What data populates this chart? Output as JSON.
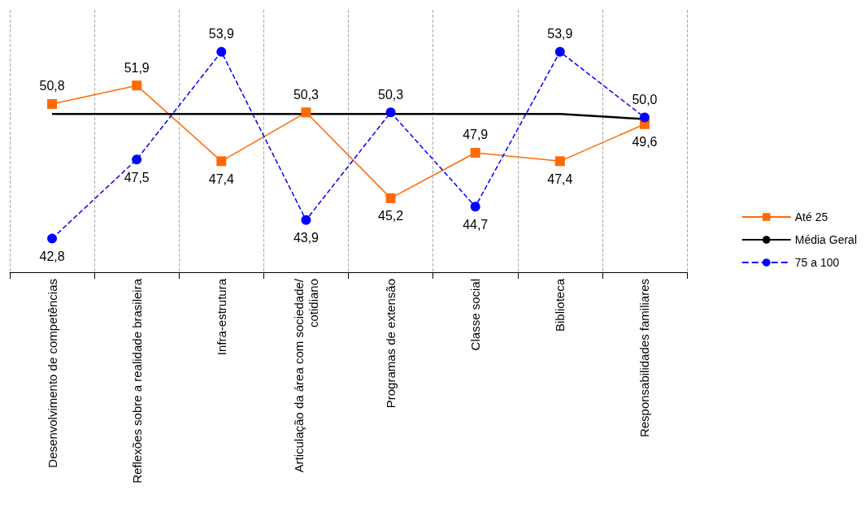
{
  "chart_data": {
    "type": "line",
    "categories": [
      "Desenvolvimento de competências",
      "Reflexões sobre a realidade brasileira",
      "Infra-estrutura",
      "Articulação da área com sociedade/cotidiano",
      "Programas de extensão",
      "Classe social",
      "Biblioteca",
      "Responsabilidades familiares"
    ],
    "series": [
      {
        "name": "Até 25",
        "color": "#ff6a00",
        "marker": "square",
        "line_style": "solid",
        "values": [
          50.8,
          51.9,
          47.4,
          50.3,
          45.2,
          47.9,
          47.4,
          49.6
        ],
        "value_labels": [
          "50,8",
          "51,9",
          "47,4",
          "50,3",
          "45,2",
          "47,9",
          "47,4",
          "49,6"
        ]
      },
      {
        "name": "Média Geral",
        "color": "#000000",
        "marker": "none",
        "line_style": "solid",
        "values": [
          50.2,
          50.2,
          50.2,
          50.2,
          50.2,
          50.2,
          50.2,
          49.9
        ]
      },
      {
        "name": "75 a 100",
        "color": "#0000ff",
        "marker": "circle",
        "line_style": "dashed",
        "values": [
          42.8,
          47.5,
          53.9,
          43.9,
          50.3,
          44.7,
          53.9,
          50.0
        ],
        "value_labels": [
          "42,8",
          "47,5",
          "53,9",
          "43,9",
          "50,3",
          "44,7",
          "53,9",
          "50,0"
        ]
      }
    ],
    "grid": "x",
    "legend": "right"
  }
}
